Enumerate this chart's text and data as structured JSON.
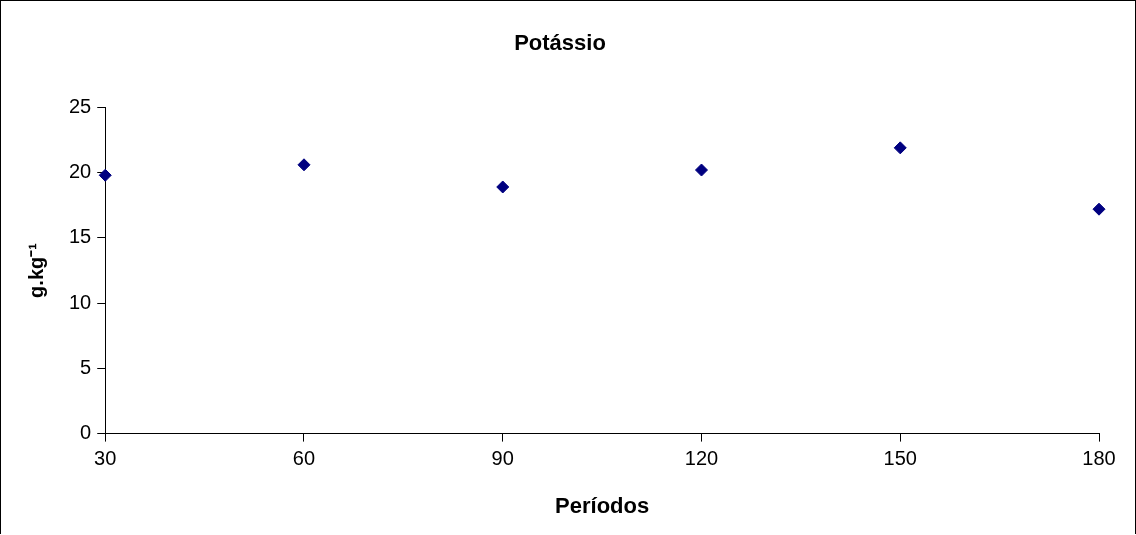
{
  "chart_data": {
    "type": "scatter",
    "title": "Potássio",
    "xlabel": "Períodos",
    "ylabel": "g.kg⁻¹",
    "x": [
      30,
      60,
      90,
      120,
      150,
      180
    ],
    "series": [
      {
        "color": "#000080",
        "values": [
          19.8,
          20.6,
          18.9,
          20.2,
          21.9,
          17.2
        ]
      }
    ],
    "xlim": [
      30,
      180
    ],
    "xticks": [
      30,
      60,
      90,
      120,
      150,
      180
    ],
    "ylim": [
      0,
      25
    ],
    "yticks": [
      0,
      5,
      10,
      15,
      20,
      25
    ],
    "grid": false,
    "legend": false,
    "marker": "diamond"
  }
}
